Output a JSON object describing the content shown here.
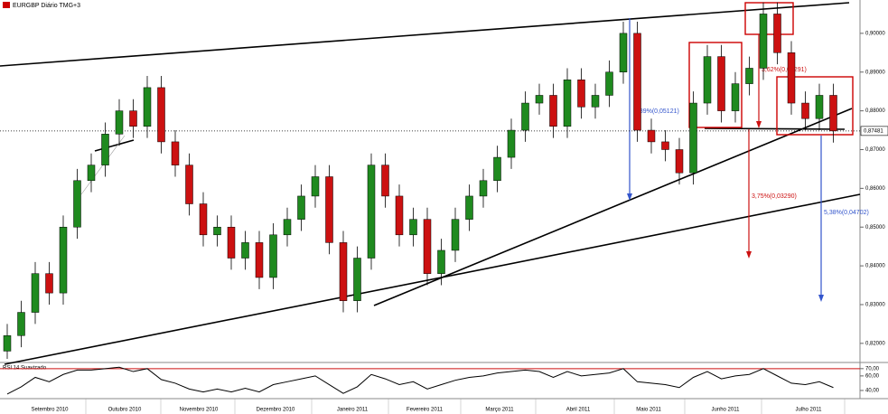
{
  "chart_data": {
    "type": "candlestick",
    "title": "EURGBP Diário TMG+3",
    "ylim": [
      0.8153,
      0.9086
    ],
    "yticks": [
      {
        "value": 0.82,
        "label": "0,82000"
      },
      {
        "value": 0.83,
        "label": "0,83000"
      },
      {
        "value": 0.84,
        "label": "0,84000"
      },
      {
        "value": 0.85,
        "label": "0,85000"
      },
      {
        "value": 0.86,
        "label": "0,86000"
      },
      {
        "value": 0.87,
        "label": "0,87000"
      },
      {
        "value": 0.88,
        "label": "0,88000"
      },
      {
        "value": 0.89,
        "label": "0,89000"
      },
      {
        "value": 0.9,
        "label": "0,90000"
      }
    ],
    "last_price": {
      "value": 0.87481,
      "label": "0,87481"
    },
    "up_color": "#1f8a1f",
    "down_color": "#cc1111",
    "open": [
      0.818,
      0.822,
      0.828,
      0.838,
      0.833,
      0.85,
      0.862,
      0.866,
      0.874,
      0.88,
      0.876,
      0.886,
      0.872,
      0.866,
      0.856,
      0.848,
      0.85,
      0.842,
      0.846,
      0.837,
      0.848,
      0.852,
      0.858,
      0.863,
      0.846,
      0.831,
      0.842,
      0.866,
      0.858,
      0.848,
      0.852,
      0.838,
      0.844,
      0.852,
      0.858,
      0.862,
      0.868,
      0.875,
      0.882,
      0.884,
      0.876,
      0.888,
      0.881,
      0.884,
      0.89,
      0.9,
      0.875,
      0.872,
      0.87,
      0.864,
      0.882,
      0.894,
      0.88,
      0.887,
      0.891,
      0.905,
      0.895,
      0.882,
      0.878,
      0.884
    ],
    "high": [
      0.825,
      0.831,
      0.841,
      0.841,
      0.853,
      0.865,
      0.869,
      0.877,
      0.883,
      0.883,
      0.889,
      0.889,
      0.875,
      0.869,
      0.859,
      0.853,
      0.853,
      0.849,
      0.849,
      0.851,
      0.855,
      0.861,
      0.866,
      0.866,
      0.849,
      0.845,
      0.869,
      0.869,
      0.861,
      0.855,
      0.855,
      0.847,
      0.855,
      0.861,
      0.865,
      0.871,
      0.878,
      0.885,
      0.887,
      0.887,
      0.891,
      0.891,
      0.887,
      0.893,
      0.903,
      0.903,
      0.878,
      0.875,
      0.873,
      0.885,
      0.897,
      0.897,
      0.89,
      0.894,
      0.908,
      0.908,
      0.898,
      0.885,
      0.887,
      0.887
    ],
    "low": [
      0.816,
      0.819,
      0.825,
      0.83,
      0.83,
      0.847,
      0.859,
      0.863,
      0.871,
      0.873,
      0.873,
      0.869,
      0.863,
      0.853,
      0.845,
      0.845,
      0.839,
      0.839,
      0.834,
      0.834,
      0.845,
      0.849,
      0.855,
      0.843,
      0.828,
      0.828,
      0.839,
      0.855,
      0.845,
      0.845,
      0.835,
      0.835,
      0.841,
      0.849,
      0.855,
      0.859,
      0.865,
      0.872,
      0.879,
      0.873,
      0.873,
      0.878,
      0.878,
      0.881,
      0.887,
      0.872,
      0.869,
      0.867,
      0.861,
      0.861,
      0.879,
      0.877,
      0.877,
      0.884,
      0.888,
      0.892,
      0.879,
      0.875,
      0.875,
      0.8718
    ],
    "close": [
      0.822,
      0.828,
      0.838,
      0.833,
      0.85,
      0.862,
      0.866,
      0.874,
      0.88,
      0.876,
      0.886,
      0.872,
      0.866,
      0.856,
      0.848,
      0.85,
      0.842,
      0.846,
      0.837,
      0.848,
      0.852,
      0.858,
      0.863,
      0.846,
      0.831,
      0.842,
      0.866,
      0.858,
      0.848,
      0.852,
      0.838,
      0.844,
      0.852,
      0.858,
      0.862,
      0.868,
      0.875,
      0.882,
      0.884,
      0.876,
      0.888,
      0.881,
      0.884,
      0.89,
      0.9,
      0.875,
      0.872,
      0.87,
      0.864,
      0.882,
      0.894,
      0.88,
      0.887,
      0.891,
      0.905,
      0.895,
      0.882,
      0.878,
      0.884,
      0.87481
    ],
    "months": [
      "Setembro 2010",
      "Outubro 2010",
      "Novembro 2010",
      "Dezembro 2010",
      "Janeiro 2011",
      "Fevereiro 2011",
      "Março 2011",
      "Abril 2011",
      "Maio 2011",
      "Junho 2011",
      "Julho 2011"
    ],
    "annotations": [
      "3,62%(0,03291)",
      "3,75%(0,03290)",
      "5,38%(0,04702)",
      "5,89%(0,05121)"
    ],
    "rsi": {
      "name": "RSI 14 Suavizado",
      "color": "#000000",
      "level_color": "#cc1111",
      "ylim": [
        30,
        76
      ],
      "yticks": [
        {
          "value": 40,
          "label": "40,00"
        },
        {
          "value": 60,
          "label": "60,00"
        },
        {
          "value": 70,
          "label": "70,00"
        }
      ],
      "values": [
        35,
        45,
        58,
        52,
        62,
        68,
        68,
        70,
        72,
        66,
        70,
        55,
        50,
        42,
        38,
        42,
        38,
        43,
        38,
        48,
        52,
        56,
        60,
        48,
        36,
        45,
        62,
        56,
        48,
        52,
        42,
        48,
        54,
        58,
        60,
        64,
        66,
        68,
        66,
        58,
        66,
        60,
        62,
        64,
        70,
        52,
        50,
        48,
        44,
        58,
        66,
        56,
        60,
        62,
        70,
        60,
        50,
        48,
        52,
        44
      ]
    }
  }
}
